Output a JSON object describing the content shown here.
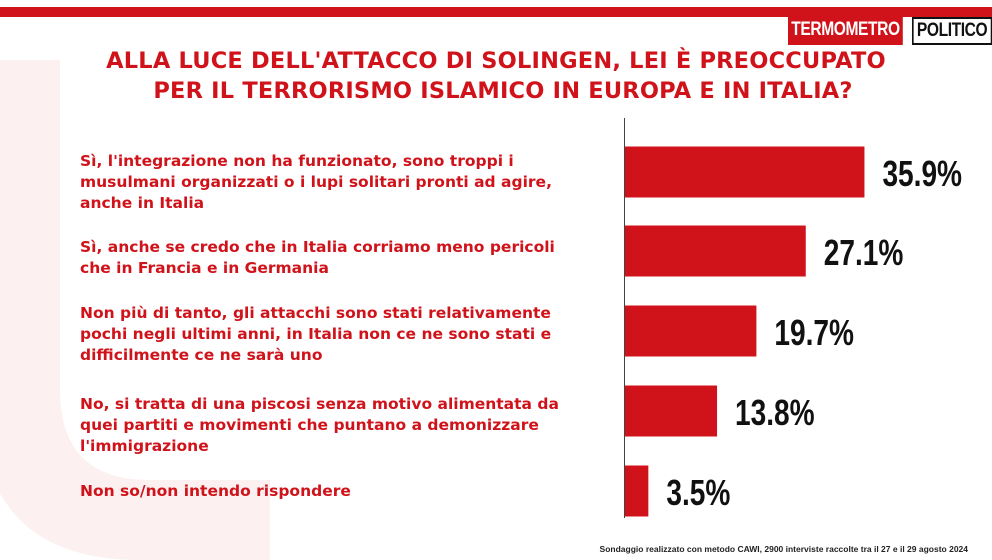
{
  "brand": {
    "part1": "TERMOMETRO",
    "part2": "POLITICO"
  },
  "title_lines": [
    "ALLA LUCE DELL'ATTACCO DI SOLINGEN, LEI È PREOCCUPATO",
    "PER IL TERRORISMO ISLAMICO IN EUROPA E IN ITALIA?"
  ],
  "colors": {
    "accent": "#d0131a",
    "text": "#111111"
  },
  "chart_data": {
    "type": "bar",
    "orientation": "horizontal",
    "title": "ALLA LUCE DELL'ATTACCO DI SOLINGEN, LEI È PREOCCUPATO PER IL TERRORISMO ISLAMICO IN EUROPA E IN ITALIA?",
    "categories": [
      "Sì, l'integrazione non ha funzionato, sono troppi i musulmani organizzati o i lupi solitari pronti ad agire, anche in Italia",
      "Sì, anche se credo che in Italia corriamo meno pericoli che in Francia e in Germania",
      "Non più di tanto, gli attacchi sono stati relativamente pochi negli ultimi anni, in Italia non ce ne sono stati e difficilmente ce ne sarà uno",
      "No, si tratta di una piscosi senza motivo alimentata da quei partiti e movimenti che puntano a demonizzare l'immigrazione",
      "Non so/non intendo rispondere"
    ],
    "values": [
      35.9,
      27.1,
      19.7,
      13.8,
      3.5
    ],
    "value_labels": [
      "35.9%",
      "27.1%",
      "19.7%",
      "13.8%",
      "3.5%"
    ],
    "unit": "%",
    "grid": false,
    "legend": "none"
  },
  "labels": [
    [
      "Sì, l'integrazione non ha funzionato, sono troppi i",
      "musulmani organizzati o i lupi solitari pronti ad agire,",
      "anche in Italia"
    ],
    [
      "Sì, anche se credo che in Italia corriamo meno pericoli",
      "che in Francia e in Germania"
    ],
    [
      "Non più di tanto, gli attacchi sono stati relativamente",
      "pochi negli ultimi anni, in Italia non ce ne sono stati e",
      "difficilmente ce ne sarà uno"
    ],
    [
      "No, si tratta di una piscosi senza motivo alimentata da",
      "quei partiti e movimenti che puntano a demonizzare",
      "l'immigrazione"
    ],
    [
      "Non so/non intendo rispondere"
    ]
  ],
  "footer": "Sondaggio realizzato con metodo CAWI, 2900 interviste raccolte tra il 27 e il 29 agosto 2024"
}
